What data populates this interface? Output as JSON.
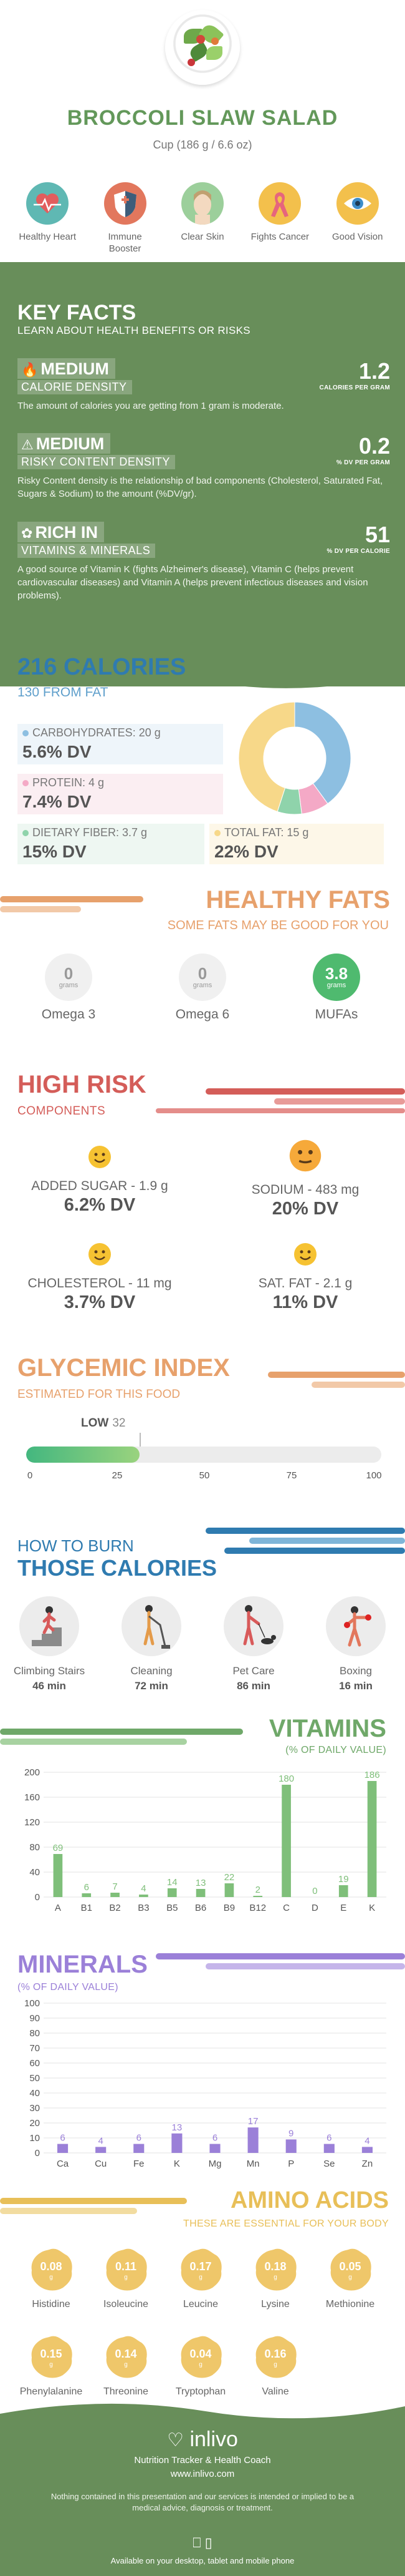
{
  "header": {
    "title": "BROCCOLI SLAW SALAD",
    "serving": "Cup (186 g / 6.6 oz)"
  },
  "benefits": [
    {
      "label": "Healthy Heart",
      "icon": "heart-monitor-icon",
      "color": "#5fb8b3"
    },
    {
      "label": "Immune Booster",
      "icon": "shield-icon",
      "color": "#e2775d"
    },
    {
      "label": "Clear Skin",
      "icon": "face-icon",
      "color": "#9ccf9b"
    },
    {
      "label": "Fights Cancer",
      "icon": "ribbon-icon",
      "color": "#f3c04c"
    },
    {
      "label": "Good Vision",
      "icon": "eye-icon",
      "color": "#f3c04c"
    }
  ],
  "key_facts": {
    "title": "KEY FACTS",
    "subtitle": "LEARN ABOUT HEALTH BENEFITS OR RISKS",
    "items": [
      {
        "level": "MEDIUM",
        "name": "CALORIE DENSITY",
        "value": "1.2",
        "unit": "CALORIES PER GRAM",
        "desc": "The amount of calories you are getting from 1 gram is moderate.",
        "icon": "flame-icon"
      },
      {
        "level": "MEDIUM",
        "name": "RISKY CONTENT DENSITY",
        "value": "0.2",
        "unit": "% DV PER GRAM",
        "desc": "Risky Content density is the relationship of bad components (Cholesterol, Saturated Fat, Sugars & Sodium) to the amount (%DV/gr).",
        "icon": "warning-icon"
      },
      {
        "level": "RICH IN",
        "name": "VITAMINS & MINERALS",
        "value": "51",
        "unit": "% DV PER CALORIE",
        "desc": "A good source of Vitamin K (fights Alzheimer's disease), Vitamin C (helps prevent cardiovascular diseases) and Vitamin A (helps prevent infectious diseases and vision problems).",
        "icon": "leaf-icon"
      }
    ]
  },
  "calories": {
    "title": "216 CALORIES",
    "subtitle": "130 FROM FAT",
    "macros": [
      {
        "label": "CARBOHYDRATES: 20 g",
        "dv": "5.6% DV",
        "color": "#8dbfe1"
      },
      {
        "label": "PROTEIN: 4 g",
        "dv": "7.4% DV",
        "color": "#f4a9c6"
      },
      {
        "label": "DIETARY FIBER: 3.7 g",
        "dv": "15% DV",
        "color": "#8fd3ab"
      },
      {
        "label": "TOTAL FAT: 15 g",
        "dv": "22% DV",
        "color": "#f7d889"
      }
    ],
    "donut": [
      {
        "name": "CARBOHYDRATES",
        "value": 40,
        "color": "#8dbfe1"
      },
      {
        "name": "PROTEIN",
        "value": 8,
        "color": "#f4a9c6"
      },
      {
        "name": "DIETARY FIBER",
        "value": 7,
        "color": "#8fd3ab"
      },
      {
        "name": "TOTAL FAT",
        "value": 45,
        "color": "#f7d889"
      }
    ]
  },
  "healthy_fats": {
    "title": "HEALTHY FATS",
    "subtitle": "SOME FATS MAY BE GOOD FOR YOU",
    "items": [
      {
        "value": "0",
        "unit": "grams",
        "name": "Omega 3"
      },
      {
        "value": "0",
        "unit": "grams",
        "name": "Omega 6"
      },
      {
        "value": "3.8",
        "unit": "grams",
        "name": "MUFAs"
      }
    ]
  },
  "high_risk": {
    "title": "HIGH RISK",
    "subtitle": "COMPONENTS",
    "items": [
      {
        "label": "ADDED SUGAR - 1.9 g",
        "dv": "6.2% DV"
      },
      {
        "label": "SODIUM - 483 mg",
        "dv": "20% DV"
      },
      {
        "label": "CHOLESTEROL - 11 mg",
        "dv": "3.7% DV"
      },
      {
        "label": "SAT. FAT - 2.1 g",
        "dv": "11% DV"
      }
    ]
  },
  "glycemic": {
    "title": "GLYCEMIC INDEX",
    "subtitle": "ESTIMATED FOR THIS FOOD",
    "level": "LOW",
    "value": "32",
    "fill_percent": 32,
    "ticks": [
      "0",
      "25",
      "50",
      "75",
      "100"
    ]
  },
  "burn": {
    "title_line1": "HOW TO BURN",
    "title_line2": "THOSE CALORIES",
    "activities": [
      {
        "name": "Climbing Stairs",
        "minutes": "46 min",
        "icon": "stairs-icon"
      },
      {
        "name": "Cleaning",
        "minutes": "72 min",
        "icon": "vacuum-icon"
      },
      {
        "name": "Pet Care",
        "minutes": "86 min",
        "icon": "dog-walk-icon"
      },
      {
        "name": "Boxing",
        "minutes": "16 min",
        "icon": "boxing-icon"
      }
    ]
  },
  "vitamins": {
    "title": "VITAMINS",
    "subtitle": "(% OF DAILY VALUE)"
  },
  "minerals": {
    "title": "MINERALS",
    "subtitle": "(% OF DAILY VALUE)"
  },
  "chart_data": [
    {
      "type": "bar",
      "categories": [
        "A",
        "B1",
        "B2",
        "B3",
        "B5",
        "B6",
        "B9",
        "B12",
        "C",
        "D",
        "E",
        "K"
      ],
      "values": [
        69,
        6,
        7,
        4,
        14,
        13,
        22,
        2,
        180,
        0,
        19,
        186
      ],
      "ylim": [
        0,
        200
      ],
      "yticks": [
        "0",
        "40",
        "80",
        "120",
        "160",
        "200"
      ],
      "color": "#7fbf7a"
    },
    {
      "type": "bar",
      "categories": [
        "Ca",
        "Cu",
        "Fe",
        "K",
        "Mg",
        "Mn",
        "P",
        "Se",
        "Zn"
      ],
      "values": [
        6,
        4,
        6,
        13,
        6,
        17,
        9,
        6,
        4
      ],
      "ylim": [
        0,
        100
      ],
      "yticks": [
        "0",
        "10",
        "20",
        "30",
        "40",
        "50",
        "60",
        "70",
        "80",
        "90",
        "100"
      ],
      "color": "#9b80d8"
    }
  ],
  "amino": {
    "title": "AMINO ACIDS",
    "subtitle": "THESE ARE ESSENTIAL FOR YOUR BODY",
    "unit": "g",
    "items": [
      {
        "value": "0.08",
        "name": "Histidine"
      },
      {
        "value": "0.11",
        "name": "Isoleucine"
      },
      {
        "value": "0.17",
        "name": "Leucine"
      },
      {
        "value": "0.18",
        "name": "Lysine"
      },
      {
        "value": "0.05",
        "name": "Methionine"
      },
      {
        "value": "0.15",
        "name": "Phenylalanine"
      },
      {
        "value": "0.14",
        "name": "Threonine"
      },
      {
        "value": "0.04",
        "name": "Tryptophan"
      },
      {
        "value": "0.16",
        "name": "Valine"
      }
    ]
  },
  "footer": {
    "brand": "inlivo",
    "tagline": "Nutrition Tracker & Health Coach",
    "url": "www.inlivo.com",
    "disclaimer": "Nothing contained in this presentation and our services is intended or implied to be a medical advice, diagnosis or treatment.",
    "availability": "Available on your desktop, tablet and mobile phone"
  }
}
